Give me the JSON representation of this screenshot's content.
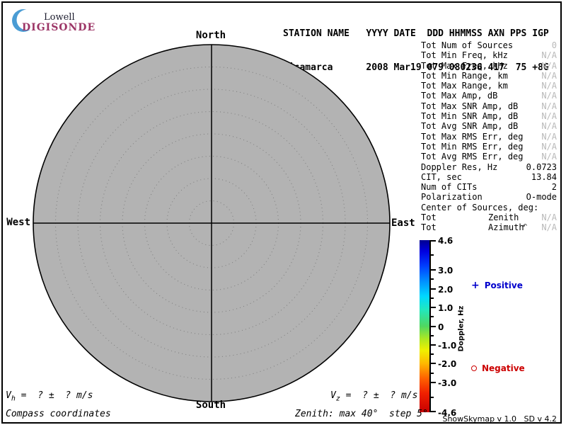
{
  "logo": {
    "top": "Lowell",
    "bottom": "DIGISONDE"
  },
  "header": {
    "line1": "STATION NAME   YYYY DATE  DDD HHMMSS AXN PPS IGP",
    "line2": "Jicamarca      2008 Mar19 079 080236 417  75 +8G"
  },
  "station": {
    "name": "Jicamarca",
    "year": "2008",
    "date": "Mar19",
    "ddd": "079",
    "hhmmss": "080236",
    "axn": "417",
    "pps": "75",
    "igp": "+8G"
  },
  "compass": {
    "north": "North",
    "south": "South",
    "east": "East",
    "west": "West"
  },
  "stats": [
    {
      "label": "Tot Num of Sources",
      "value": "0",
      "muted": true
    },
    {
      "label": "Tot Min Freq, kHz",
      "value": "N/A",
      "muted": true
    },
    {
      "label": "Tot Max Freq, kHz",
      "value": "N/A",
      "muted": true
    },
    {
      "label": "Tot Min Range, km",
      "value": "N/A",
      "muted": true
    },
    {
      "label": "Tot Max Range, km",
      "value": "N/A",
      "muted": true
    },
    {
      "label": "Tot Max Amp, dB",
      "value": "N/A",
      "muted": true
    },
    {
      "label": "Tot Max SNR Amp, dB",
      "value": "N/A",
      "muted": true
    },
    {
      "label": "Tot Min SNR Amp, dB",
      "value": "N/A",
      "muted": true
    },
    {
      "label": "Tot Avg SNR Amp, dB",
      "value": "N/A",
      "muted": true
    },
    {
      "label": "Tot Max RMS Err, deg",
      "value": "N/A",
      "muted": true
    },
    {
      "label": "Tot Min RMS Err, deg",
      "value": "N/A",
      "muted": true
    },
    {
      "label": "Tot Avg RMS Err, deg",
      "value": "N/A",
      "muted": true
    },
    {
      "label": "Doppler Res, Hz",
      "value": "0.0723",
      "muted": false
    },
    {
      "label": "CIT, sec",
      "value": "13.84",
      "muted": false
    },
    {
      "label": "Num of CITs",
      "value": "2",
      "muted": false
    },
    {
      "label": "Polarization",
      "value": "O-mode",
      "muted": false
    },
    {
      "label": "Center of Sources, deg:",
      "value": "",
      "muted": false
    },
    {
      "label": "Tot",
      "sublabel": "Zenith",
      "value": "N/A",
      "muted": true
    },
    {
      "label": "Tot",
      "sublabel": "Azimuth",
      "value": "N/A",
      "muted": true
    }
  ],
  "legend": {
    "positive": "Positive",
    "negative": "Negative"
  },
  "footer": {
    "vh_prefix": "V",
    "vh_sub": "h",
    "vh_rest": " =  ? ±  ? m/s",
    "vz_prefix": "V",
    "vz_sub": "z",
    "vz_rest": " =  ? ±  ? m/s",
    "coords_note": "Compass coordinates",
    "zenith_note": "Zenith: max 40°  step 5°",
    "version": "ShowSkymap v 1.0   SD v 4.2"
  },
  "icons": {
    "cursor": "↶"
  },
  "colors": {
    "logo_magenta": "#9c3566",
    "crescent_blue": "#4a9cd4",
    "positive_blue": "#0000cc",
    "negative_red": "#cc0000",
    "muted_gray": "#b9b9b9",
    "disk_gray": "#b3b3b3",
    "ring_gray": "#828282"
  },
  "chart_data": {
    "type": "scatter",
    "subtype": "polar-skymap",
    "description": "Digisonde skymap of Doppler sources; zero sources plotted for this record",
    "points": [],
    "num_sources": 0,
    "zenith_max_deg": 40,
    "zenith_step_deg": 5,
    "compass_labels": [
      "North",
      "East",
      "South",
      "West"
    ],
    "colorbar": {
      "label": "Doppler, Hz",
      "min": -4.6,
      "max": 4.6,
      "major_ticks": [
        {
          "v": 4.6,
          "label": "4.6"
        },
        {
          "v": 3.0,
          "label": "3.0"
        },
        {
          "v": 2.0,
          "label": "2.0"
        },
        {
          "v": 1.0,
          "label": "1.0"
        },
        {
          "v": 0,
          "label": "0"
        },
        {
          "v": -1.0,
          "label": "-1.0"
        },
        {
          "v": -2.0,
          "label": "-2.0"
        },
        {
          "v": -3.0,
          "label": "-3.0"
        },
        {
          "v": -4.6,
          "label": "-4.6"
        }
      ],
      "minor_ticks": [
        3.8,
        2.5,
        1.5,
        0.5,
        -0.5,
        -1.5,
        -2.5,
        -3.8
      ],
      "gradient_stops": [
        {
          "v": 4.6,
          "color": "#000090"
        },
        {
          "v": 4.0,
          "color": "#0000e0"
        },
        {
          "v": 3.2,
          "color": "#0040ff"
        },
        {
          "v": 2.4,
          "color": "#0090ff"
        },
        {
          "v": 1.6,
          "color": "#00d8ff"
        },
        {
          "v": 0.9,
          "color": "#20e8c0"
        },
        {
          "v": 0.0,
          "color": "#50d860"
        },
        {
          "v": -0.7,
          "color": "#b0e820"
        },
        {
          "v": -1.3,
          "color": "#f0f000"
        },
        {
          "v": -2.0,
          "color": "#ffb800"
        },
        {
          "v": -2.8,
          "color": "#ff6000"
        },
        {
          "v": -3.6,
          "color": "#f02000"
        },
        {
          "v": -4.6,
          "color": "#c80000"
        }
      ]
    }
  }
}
